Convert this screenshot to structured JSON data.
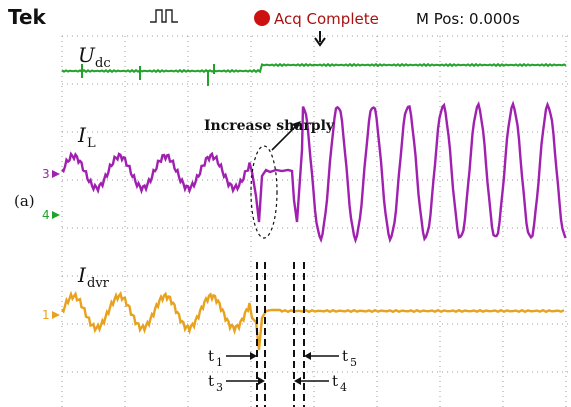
{
  "header": {
    "brand": "Tek",
    "status": "Acq Complete",
    "mpos": "M Pos: 0.000s"
  },
  "colors": {
    "udc": "#22a22a",
    "il": "#a020b0",
    "idvr": "#e8a21e",
    "grid": "#9c9c9c",
    "status_dot": "#cc1111"
  },
  "labels": {
    "panel": "(a)",
    "udc_main": "U",
    "udc_sub": "dc",
    "il_main": "I",
    "il_sub": "L",
    "idvr_main": "I",
    "idvr_sub": "dvr",
    "annotation": "Increase sharply",
    "ch3": "3",
    "ch4": "4",
    "ch1": "1",
    "t1_main": "t",
    "t1_sub": "1",
    "t3_main": "t",
    "t3_sub": "3",
    "t4_main": "t",
    "t4_sub": "4",
    "t5_main": "t",
    "t5_sub": "5"
  },
  "chart_data": {
    "type": "line",
    "title": "",
    "xlabel": "",
    "ylabel": "",
    "grid": true,
    "series": [
      {
        "name": "Udc",
        "description_values": {
          "before_level": 0.0,
          "after_level": 0.15
        }
      },
      {
        "name": "IL",
        "description_values": {
          "pre_amplitude": 0.25,
          "post_amplitude": 1.0
        }
      },
      {
        "name": "Idvr",
        "description_values": {
          "pre_amplitude": 0.25,
          "post_amplitude": 0.0
        }
      }
    ]
  }
}
